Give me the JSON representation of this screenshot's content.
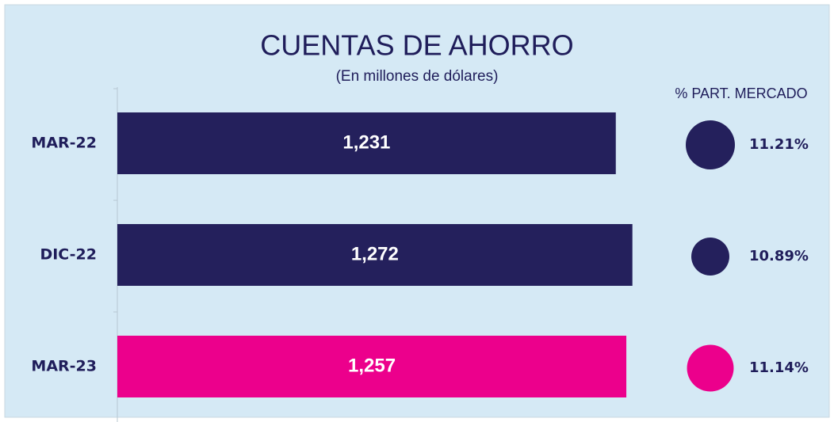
{
  "chart_data": {
    "type": "bar",
    "orientation": "horizontal",
    "title": "CUENTAS DE AHORRO",
    "subtitle": "(En millones de dólares)",
    "categories": [
      "MAR-22",
      "DIC-22",
      "MAR-23"
    ],
    "values": [
      1231,
      1272,
      1257
    ],
    "value_labels": [
      "1,231",
      "1,272",
      "1,257"
    ],
    "colors": [
      "#24205c",
      "#24205c",
      "#ec008c"
    ],
    "xlim": [
      0,
      1300
    ],
    "market_share": {
      "title": "% PART. MERCADO",
      "values": [
        11.21,
        10.89,
        11.14
      ],
      "value_labels": [
        "11.21%",
        "10.89%",
        "11.14%"
      ]
    }
  }
}
